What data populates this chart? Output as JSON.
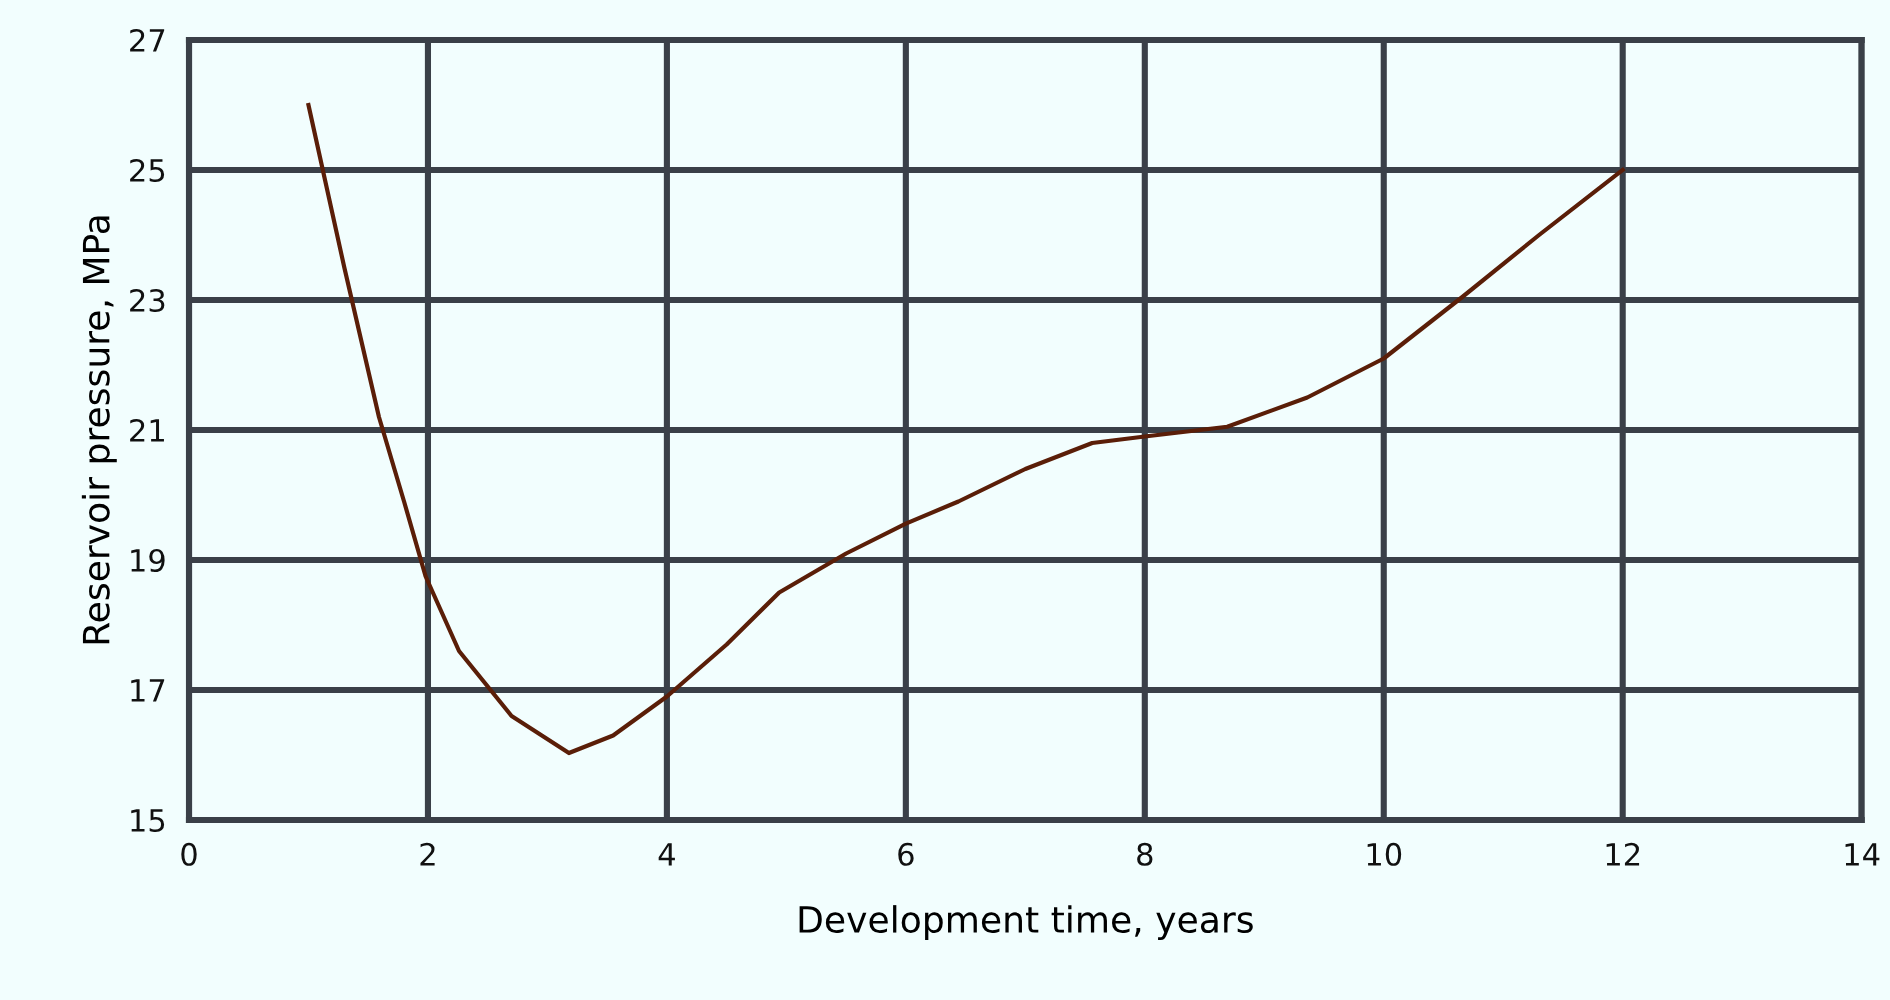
{
  "chart_data": {
    "type": "line",
    "xlabel": "Development time, years",
    "ylabel": "Reservoir pressure, MPa",
    "series": [
      {
        "color": "#5a1e08",
        "x": [
          1,
          1.3,
          1.59,
          1.8,
          1.98,
          2.26,
          2.7,
          3.18,
          3.55,
          4,
          4.5,
          4.94,
          5.5,
          6,
          6.44,
          7,
          7.56,
          8,
          8.69,
          9.36,
          10,
          10.66,
          11.3,
          12
        ],
        "values": [
          26,
          23.5,
          21.2,
          19.9,
          18.75,
          17.6,
          16.6,
          16.03,
          16.3,
          16.9,
          17.7,
          18.5,
          19.1,
          19.56,
          19.9,
          20.4,
          20.8,
          20.9,
          21.05,
          21.5,
          22.1,
          23.05,
          24,
          25
        ]
      }
    ],
    "xlim": [
      0,
      14
    ],
    "xticks": [
      0,
      2,
      4,
      6,
      8,
      10,
      12,
      14
    ],
    "ylim": [
      15,
      27
    ],
    "yticks": [
      15,
      17,
      19,
      21,
      23,
      25,
      27
    ],
    "grid": true,
    "marker": "none",
    "line_style": "solid",
    "legend": false
  }
}
